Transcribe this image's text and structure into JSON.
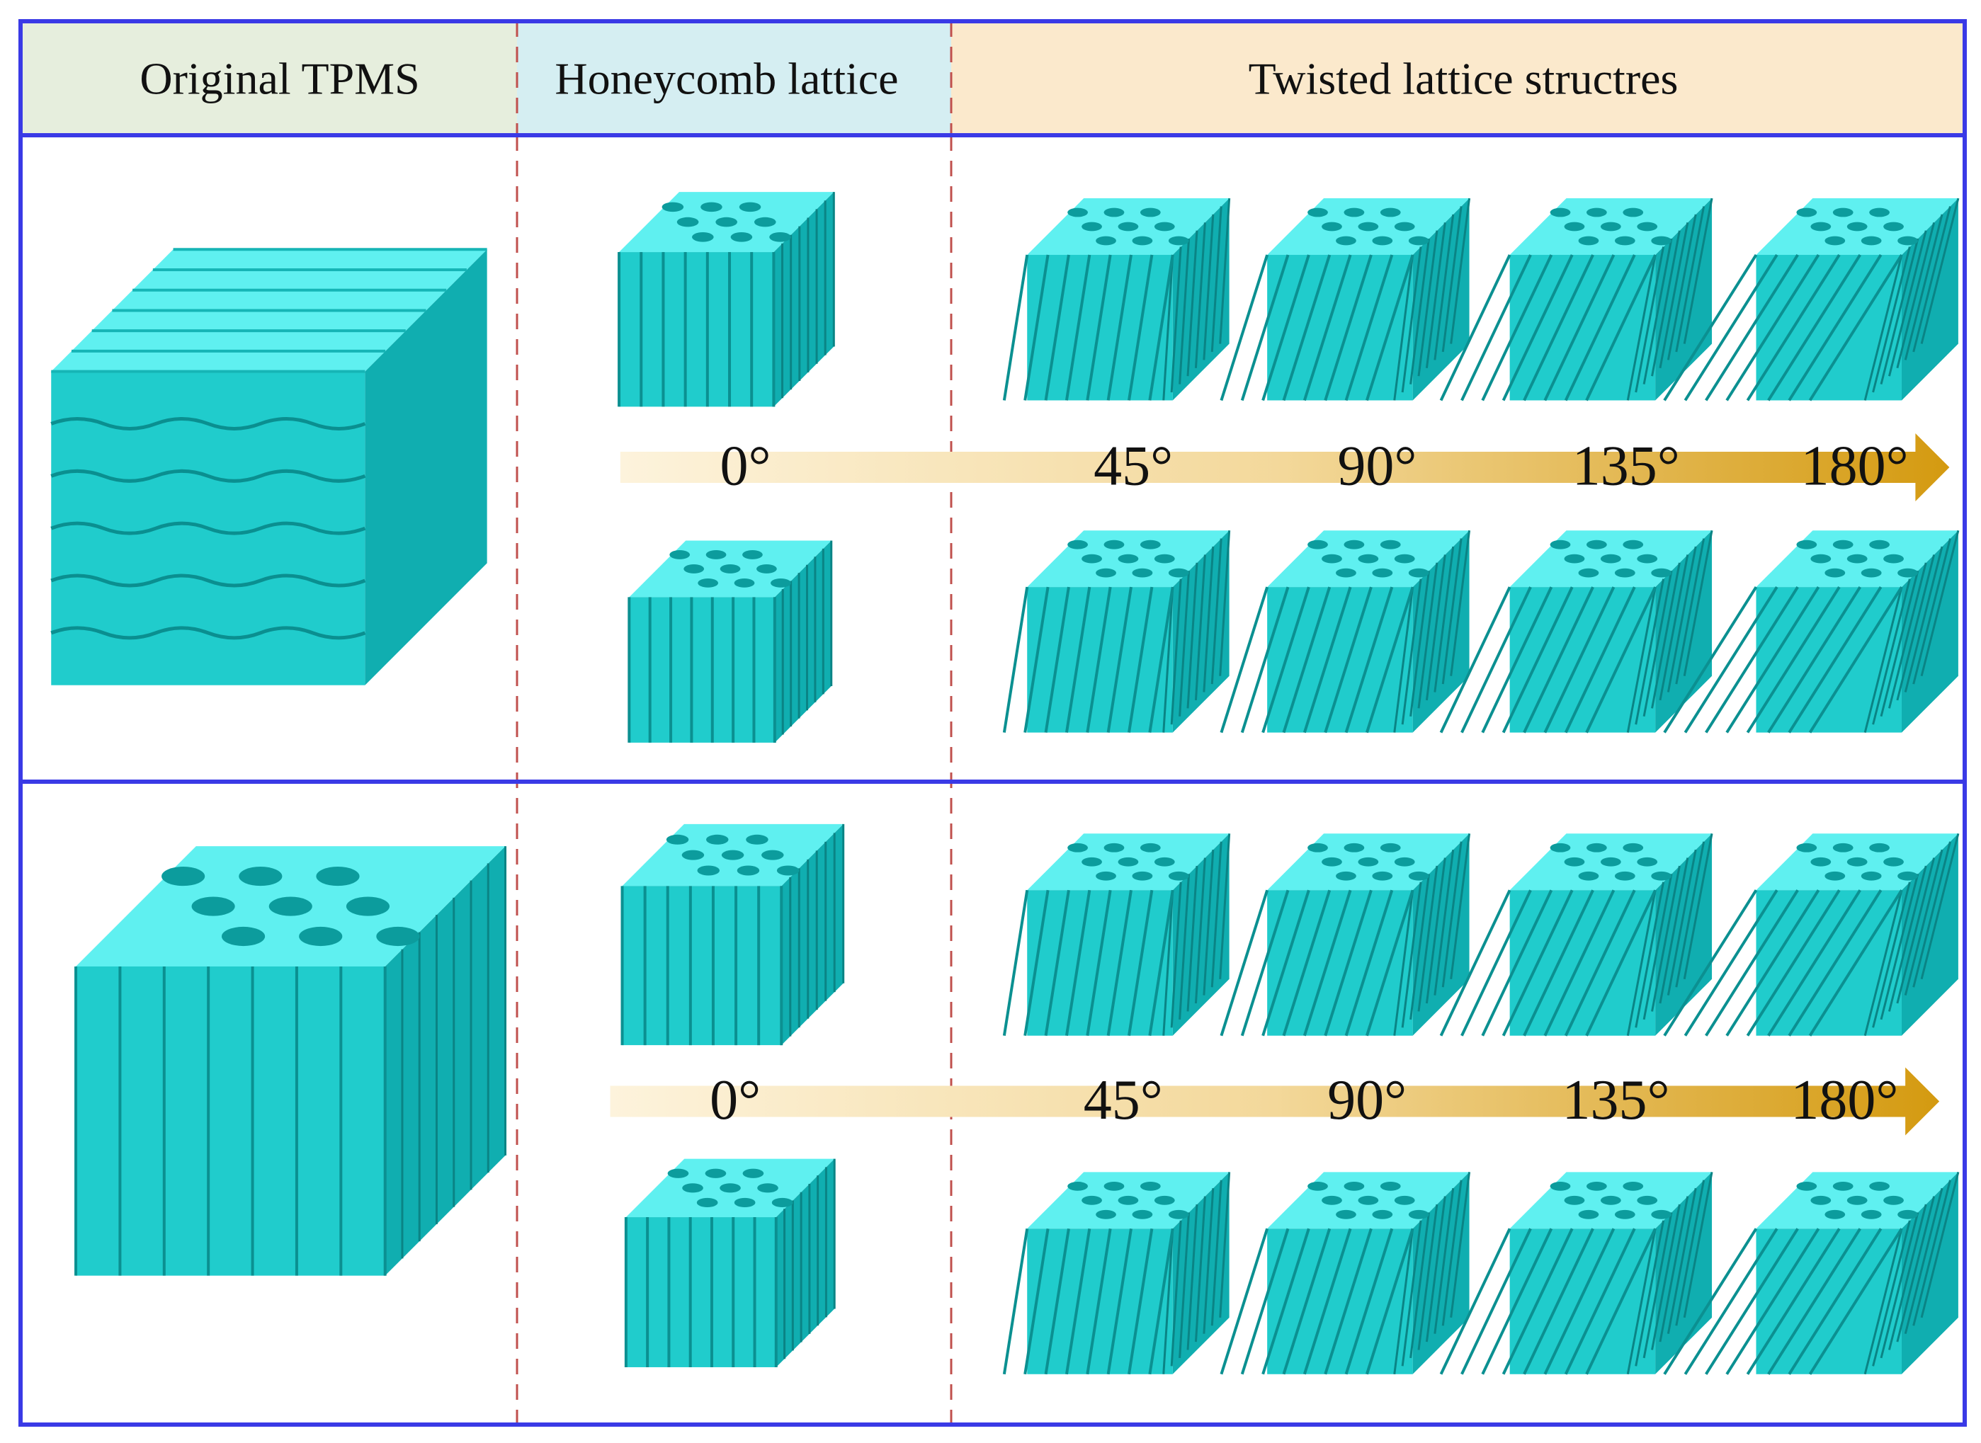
{
  "header": [
    "Original TPMS",
    "Honeycomb lattice",
    "Twisted lattice structres"
  ],
  "rows": [
    {
      "angles": [
        "0°",
        "45°",
        "90°",
        "135°",
        "180°"
      ]
    },
    {
      "angles": [
        "0°",
        "45°",
        "90°",
        "135°",
        "180°"
      ]
    }
  ]
}
